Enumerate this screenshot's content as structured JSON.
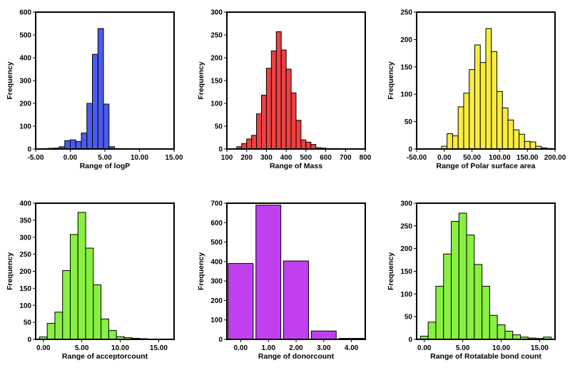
{
  "chart_data": [
    {
      "type": "bar",
      "xlabel": "Range of logP",
      "ylabel": "Frequency",
      "xlim": [
        -5,
        15
      ],
      "ylim": [
        0,
        600
      ],
      "xticks": [
        -5,
        0,
        5,
        10,
        15
      ],
      "xtick_labels": [
        "-5.00",
        "0.00",
        "5.00",
        "10.00",
        "15.00"
      ],
      "yticks": [
        0,
        100,
        200,
        300,
        400,
        500,
        600
      ],
      "ytick_labels": [
        "0",
        "100",
        "200",
        "300",
        "400",
        "500",
        "600"
      ],
      "bin_width": 0.8,
      "bar_gap": 0,
      "color": "#4a5cf0",
      "bins": [
        {
          "x": -3.6,
          "y": 2
        },
        {
          "x": -2.8,
          "y": 3
        },
        {
          "x": -2.0,
          "y": 4
        },
        {
          "x": -1.2,
          "y": 10
        },
        {
          "x": -0.4,
          "y": 37
        },
        {
          "x": 0.4,
          "y": 40
        },
        {
          "x": 1.2,
          "y": 33
        },
        {
          "x": 2.0,
          "y": 70
        },
        {
          "x": 2.8,
          "y": 200
        },
        {
          "x": 3.6,
          "y": 415
        },
        {
          "x": 4.4,
          "y": 528
        },
        {
          "x": 5.2,
          "y": 197
        },
        {
          "x": 6.0,
          "y": 10
        },
        {
          "x": 6.8,
          "y": 2
        },
        {
          "x": 7.6,
          "y": 1
        }
      ]
    },
    {
      "type": "bar",
      "xlabel": "Range of Mass",
      "ylabel": "Frequency",
      "xlim": [
        100,
        800
      ],
      "ylim": [
        0,
        300
      ],
      "xticks": [
        100,
        200,
        300,
        400,
        500,
        600,
        700,
        800
      ],
      "xtick_labels": [
        "100",
        "200",
        "300",
        "400",
        "500",
        "600",
        "700",
        "800"
      ],
      "yticks": [
        0,
        50,
        100,
        150,
        200,
        250,
        300
      ],
      "ytick_labels": [
        "0",
        "50",
        "100",
        "150",
        "200",
        "250",
        "300"
      ],
      "bin_width": 25,
      "bar_gap": 0,
      "color": "#f04040",
      "bins": [
        {
          "x": 162.5,
          "y": 5
        },
        {
          "x": 187.5,
          "y": 12
        },
        {
          "x": 212.5,
          "y": 22
        },
        {
          "x": 237.5,
          "y": 30
        },
        {
          "x": 262.5,
          "y": 77
        },
        {
          "x": 287.5,
          "y": 118
        },
        {
          "x": 312.5,
          "y": 177
        },
        {
          "x": 337.5,
          "y": 215
        },
        {
          "x": 362.5,
          "y": 257
        },
        {
          "x": 387.5,
          "y": 217
        },
        {
          "x": 412.5,
          "y": 175
        },
        {
          "x": 437.5,
          "y": 123
        },
        {
          "x": 462.5,
          "y": 63
        },
        {
          "x": 487.5,
          "y": 20
        },
        {
          "x": 512.5,
          "y": 15
        },
        {
          "x": 537.5,
          "y": 10
        },
        {
          "x": 562.5,
          "y": 3
        },
        {
          "x": 587.5,
          "y": 2
        },
        {
          "x": 612.5,
          "y": 1
        },
        {
          "x": 637.5,
          "y": 1
        },
        {
          "x": 662.5,
          "y": 1
        }
      ]
    },
    {
      "type": "bar",
      "xlabel": "Range of Polar surface area",
      "ylabel": "Frequency",
      "xlim": [
        -50,
        200
      ],
      "ylim": [
        0,
        250
      ],
      "xticks": [
        -50,
        0,
        50,
        100,
        150,
        200
      ],
      "xtick_labels": [
        "-50.00",
        "0.00",
        "50.00",
        "100.00",
        "150.00",
        "200.00"
      ],
      "yticks": [
        0,
        50,
        100,
        150,
        200,
        250
      ],
      "ytick_labels": [
        "0",
        "50",
        "100",
        "150",
        "200",
        "250"
      ],
      "bin_width": 10,
      "bar_gap": 0,
      "color": "#f7ec40",
      "bins": [
        {
          "x": 0,
          "y": 5
        },
        {
          "x": 10,
          "y": 28
        },
        {
          "x": 20,
          "y": 24
        },
        {
          "x": 30,
          "y": 77
        },
        {
          "x": 40,
          "y": 102
        },
        {
          "x": 50,
          "y": 145
        },
        {
          "x": 60,
          "y": 190
        },
        {
          "x": 70,
          "y": 158
        },
        {
          "x": 80,
          "y": 220
        },
        {
          "x": 90,
          "y": 178
        },
        {
          "x": 100,
          "y": 105
        },
        {
          "x": 110,
          "y": 75
        },
        {
          "x": 120,
          "y": 53
        },
        {
          "x": 130,
          "y": 35
        },
        {
          "x": 140,
          "y": 27
        },
        {
          "x": 150,
          "y": 14
        },
        {
          "x": 160,
          "y": 13
        },
        {
          "x": 170,
          "y": 5
        },
        {
          "x": 180,
          "y": 2
        },
        {
          "x": 190,
          "y": 1
        }
      ]
    },
    {
      "type": "bar",
      "xlabel": "Range of acceptorcount",
      "ylabel": "Frequency",
      "xlim": [
        -1,
        17
      ],
      "ylim": [
        0,
        400
      ],
      "xticks": [
        0,
        5,
        10,
        15
      ],
      "xtick_labels": [
        "0.00",
        "5.00",
        "10.00",
        "15.00"
      ],
      "yticks": [
        0,
        50,
        100,
        150,
        200,
        250,
        300,
        350,
        400
      ],
      "ytick_labels": [
        "0",
        "50",
        "100",
        "150",
        "200",
        "250",
        "300",
        "350",
        "400"
      ],
      "bin_width": 1,
      "bar_gap": 0,
      "color": "#88f040",
      "bins": [
        {
          "x": 0,
          "y": 7
        },
        {
          "x": 1,
          "y": 47
        },
        {
          "x": 2,
          "y": 80
        },
        {
          "x": 3,
          "y": 202
        },
        {
          "x": 4,
          "y": 308
        },
        {
          "x": 5,
          "y": 373
        },
        {
          "x": 6,
          "y": 268
        },
        {
          "x": 7,
          "y": 160
        },
        {
          "x": 8,
          "y": 60
        },
        {
          "x": 9,
          "y": 26
        },
        {
          "x": 10,
          "y": 8
        },
        {
          "x": 11,
          "y": 5
        },
        {
          "x": 12,
          "y": 3
        },
        {
          "x": 13,
          "y": 2
        },
        {
          "x": 14,
          "y": 1
        },
        {
          "x": 15,
          "y": 1
        },
        {
          "x": 16,
          "y": 1
        }
      ]
    },
    {
      "type": "bar",
      "xlabel": "Range of donorcount",
      "ylabel": "Frequency",
      "xlim": [
        -0.5,
        4.5
      ],
      "ylim": [
        0,
        700
      ],
      "xticks": [
        0,
        1,
        2,
        3,
        4
      ],
      "xtick_labels": [
        "0.00",
        "1.00",
        "2.00",
        "3.00",
        "4.00"
      ],
      "yticks": [
        0,
        100,
        200,
        300,
        400,
        500,
        600,
        700
      ],
      "ytick_labels": [
        "0",
        "100",
        "200",
        "300",
        "400",
        "500",
        "600",
        "700"
      ],
      "bin_width": 1,
      "bar_gap": 0.1,
      "color": "#c040f0",
      "bins": [
        {
          "x": 0,
          "y": 390
        },
        {
          "x": 1,
          "y": 690
        },
        {
          "x": 2,
          "y": 403
        },
        {
          "x": 3,
          "y": 43
        },
        {
          "x": 4,
          "y": 5
        }
      ]
    },
    {
      "type": "bar",
      "xlabel": "Range of Rotatable bond count",
      "ylabel": "Frequency",
      "xlim": [
        -1,
        17
      ],
      "ylim": [
        0,
        300
      ],
      "xticks": [
        0,
        5,
        10,
        15
      ],
      "xtick_labels": [
        "0.00",
        "5.00",
        "10.00",
        "15.00"
      ],
      "yticks": [
        0,
        50,
        100,
        150,
        200,
        250,
        300
      ],
      "ytick_labels": [
        "0",
        "50",
        "100",
        "150",
        "200",
        "250",
        "300"
      ],
      "bin_width": 1,
      "bar_gap": 0,
      "color": "#88f040",
      "bins": [
        {
          "x": 0,
          "y": 7
        },
        {
          "x": 1,
          "y": 38
        },
        {
          "x": 2,
          "y": 117
        },
        {
          "x": 3,
          "y": 188
        },
        {
          "x": 4,
          "y": 260
        },
        {
          "x": 5,
          "y": 278
        },
        {
          "x": 6,
          "y": 230
        },
        {
          "x": 7,
          "y": 165
        },
        {
          "x": 8,
          "y": 117
        },
        {
          "x": 9,
          "y": 53
        },
        {
          "x": 10,
          "y": 32
        },
        {
          "x": 11,
          "y": 18
        },
        {
          "x": 12,
          "y": 10
        },
        {
          "x": 13,
          "y": 5
        },
        {
          "x": 14,
          "y": 3
        },
        {
          "x": 15,
          "y": 2
        },
        {
          "x": 16,
          "y": 5
        }
      ]
    }
  ]
}
